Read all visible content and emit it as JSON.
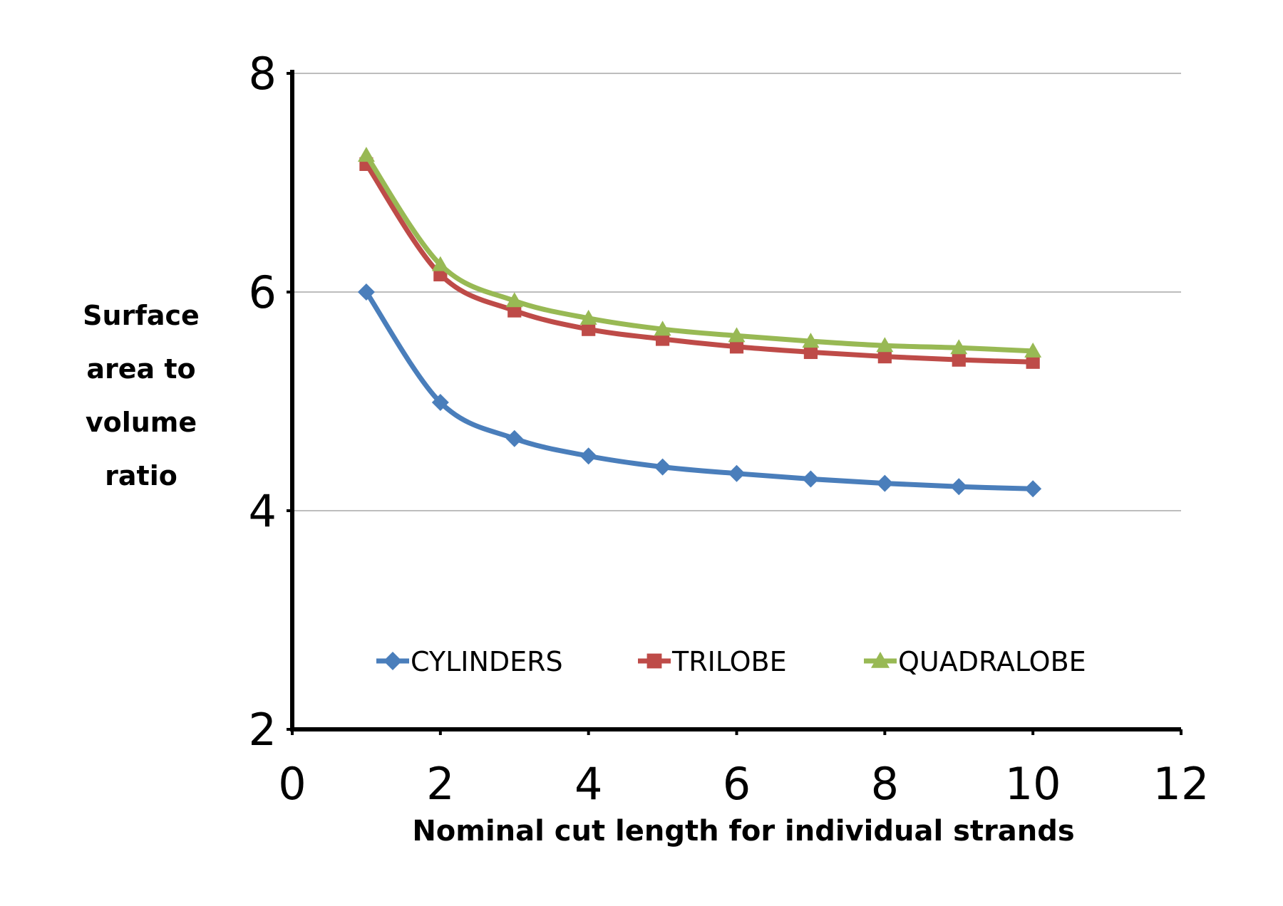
{
  "chart_data": {
    "type": "line",
    "title": "",
    "xlabel": "Nominal cut length for individual strands",
    "ylabel": "Surface area to volume ratio",
    "ylabel_lines": [
      "Surface",
      "area to",
      "volume",
      "ratio"
    ],
    "xlim": [
      0,
      12
    ],
    "ylim": [
      2,
      8
    ],
    "xticks": [
      0,
      2,
      4,
      6,
      8,
      10,
      12
    ],
    "yticks": [
      2,
      4,
      6,
      8
    ],
    "grid": "horizontal",
    "legend_position": "bottom-inside",
    "x": [
      1,
      2,
      3,
      4,
      5,
      6,
      7,
      8,
      9,
      10
    ],
    "series": [
      {
        "name": "CYLINDERS",
        "color": "#4a7ebb",
        "marker": "diamond",
        "values": [
          6.0,
          4.99,
          4.66,
          4.5,
          4.4,
          4.34,
          4.29,
          4.25,
          4.22,
          4.2
        ]
      },
      {
        "name": "TRILOBE",
        "color": "#be4b48",
        "marker": "square",
        "values": [
          7.17,
          6.16,
          5.83,
          5.66,
          5.57,
          5.5,
          5.45,
          5.41,
          5.38,
          5.36
        ]
      },
      {
        "name": "QUADRALOBE",
        "color": "#98b954",
        "marker": "triangle",
        "values": [
          7.25,
          6.25,
          5.92,
          5.76,
          5.66,
          5.6,
          5.55,
          5.51,
          5.49,
          5.46
        ]
      }
    ]
  }
}
